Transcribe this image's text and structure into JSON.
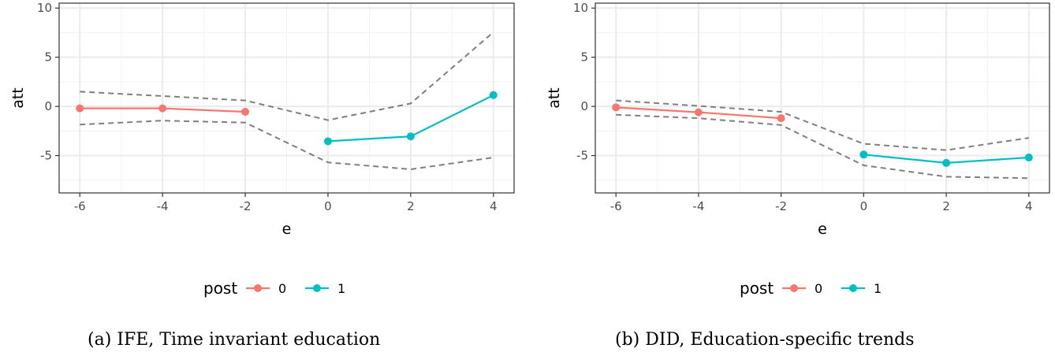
{
  "chart_data": [
    {
      "type": "line",
      "caption": "(a) IFE, Time invariant education",
      "xlabel": "e",
      "ylabel": "att",
      "xlim": [
        -6.5,
        4.5
      ],
      "ylim": [
        -8.8,
        10.5
      ],
      "x_ticks": [
        -6,
        -4,
        -2,
        0,
        2,
        4
      ],
      "y_ticks": [
        -5,
        0,
        5,
        10
      ],
      "grid": true,
      "series": [
        {
          "name": "0",
          "x": [
            -6,
            -4,
            -2
          ],
          "y": [
            -0.2,
            -0.2,
            -0.55
          ]
        },
        {
          "name": "1",
          "x": [
            0,
            2,
            4
          ],
          "y": [
            -3.55,
            -3.05,
            1.15
          ]
        }
      ],
      "ci_upper": {
        "x": [
          -6,
          -4,
          -2,
          0,
          2,
          4
        ],
        "y": [
          1.5,
          1.05,
          0.6,
          -1.4,
          0.3,
          7.55
        ]
      },
      "ci_lower": {
        "x": [
          -6,
          -4,
          -2,
          0,
          2,
          4
        ],
        "y": [
          -1.85,
          -1.45,
          -1.65,
          -5.7,
          -6.4,
          -5.2
        ]
      },
      "legend": {
        "title": "post",
        "labels": [
          "0",
          "1"
        ],
        "position": "bottom"
      }
    },
    {
      "type": "line",
      "caption": "(b) DID, Education-specific trends",
      "xlabel": "e",
      "ylabel": "att",
      "xlim": [
        -6.5,
        4.5
      ],
      "ylim": [
        -8.8,
        10.5
      ],
      "x_ticks": [
        -6,
        -4,
        -2,
        0,
        2,
        4
      ],
      "y_ticks": [
        -5,
        0,
        5,
        10
      ],
      "grid": true,
      "series": [
        {
          "name": "0",
          "x": [
            -6,
            -4,
            -2
          ],
          "y": [
            -0.1,
            -0.6,
            -1.2
          ]
        },
        {
          "name": "1",
          "x": [
            0,
            2,
            4
          ],
          "y": [
            -4.9,
            -5.75,
            -5.2
          ]
        }
      ],
      "ci_upper": {
        "x": [
          -6,
          -4,
          -2,
          0,
          2,
          4
        ],
        "y": [
          0.6,
          0.05,
          -0.55,
          -3.8,
          -4.45,
          -3.2
        ]
      },
      "ci_lower": {
        "x": [
          -6,
          -4,
          -2,
          0,
          2,
          4
        ],
        "y": [
          -0.85,
          -1.2,
          -1.9,
          -6.0,
          -7.15,
          -7.3
        ]
      },
      "legend": {
        "title": "post",
        "labels": [
          "0",
          "1"
        ],
        "position": "bottom"
      }
    }
  ],
  "colors": {
    "series": [
      "#F8766D",
      "#00BFC4"
    ],
    "ci": "#7f7f7f",
    "grid_major": "#ebebeb",
    "grid_minor": "#f3f3f3",
    "panel_border": "#333333"
  }
}
